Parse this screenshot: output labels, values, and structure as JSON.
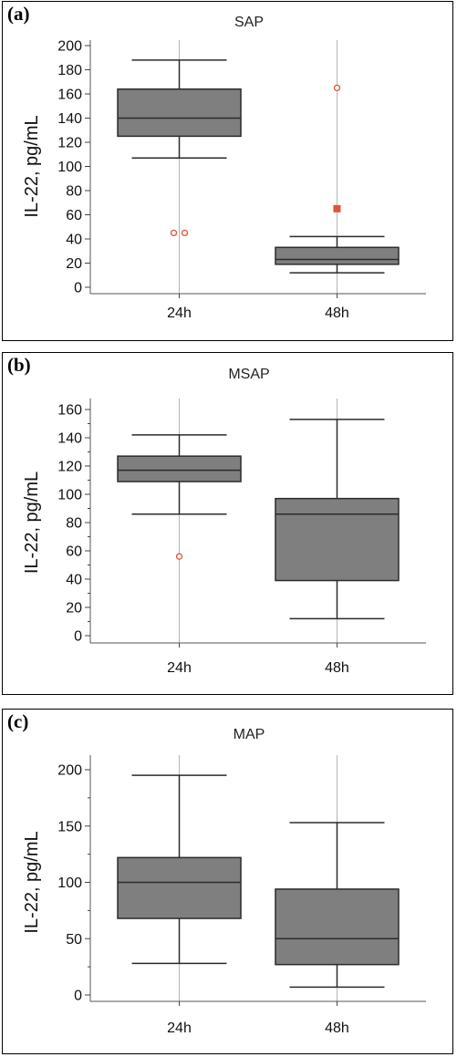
{
  "colors": {
    "box_fill": "#7f7f7f",
    "outline": "#2b2b2b",
    "outlier": "#e0533a",
    "gridline": "#b5b5b5"
  },
  "chart_data": [
    {
      "type": "box",
      "panel_label": "(a)",
      "title": "SAP",
      "ylabel": "IL-22, pg/mL",
      "ylim": [
        0,
        200
      ],
      "yticks": [
        0,
        20,
        40,
        60,
        80,
        100,
        120,
        140,
        160,
        180,
        200
      ],
      "minor_ticks": false,
      "categories": [
        "24h",
        "48h"
      ],
      "boxes": [
        {
          "category": "24h",
          "whisker_low": 107,
          "q1": 125,
          "median": 140,
          "q3": 164,
          "whisker_high": 188,
          "outliers": [
            {
              "value": 45,
              "offset": -0.06,
              "marker": "circle"
            },
            {
              "value": 45,
              "offset": 0.06,
              "marker": "circle"
            }
          ]
        },
        {
          "category": "48h",
          "whisker_low": 12,
          "q1": 19,
          "median": 23,
          "q3": 33,
          "whisker_high": 42,
          "outliers": [
            {
              "value": 165,
              "offset": 0,
              "marker": "circle"
            },
            {
              "value": 65,
              "offset": 0,
              "marker": "square"
            }
          ]
        }
      ]
    },
    {
      "type": "box",
      "panel_label": "(b)",
      "title": "MSAP",
      "ylabel": "IL-22, pg/mL",
      "ylim": [
        0,
        160
      ],
      "yticks": [
        0,
        20,
        40,
        60,
        80,
        100,
        120,
        140,
        160
      ],
      "minor_ticks": true,
      "categories": [
        "24h",
        "48h"
      ],
      "boxes": [
        {
          "category": "24h",
          "whisker_low": 86,
          "q1": 109,
          "median": 117,
          "q3": 127,
          "whisker_high": 142,
          "outliers": [
            {
              "value": 56,
              "offset": 0,
              "marker": "circle"
            }
          ]
        },
        {
          "category": "48h",
          "whisker_low": 12,
          "q1": 39,
          "median": 86,
          "q3": 97,
          "whisker_high": 153,
          "outliers": []
        }
      ]
    },
    {
      "type": "box",
      "panel_label": "(c)",
      "title": "MAP",
      "ylabel": "IL-22, pg/mL",
      "ylim": [
        0,
        200
      ],
      "yticks": [
        0,
        50,
        100,
        150,
        200
      ],
      "minor_ticks": true,
      "categories": [
        "24h",
        "48h"
      ],
      "boxes": [
        {
          "category": "24h",
          "whisker_low": 28,
          "q1": 68,
          "median": 100,
          "q3": 122,
          "whisker_high": 195,
          "outliers": []
        },
        {
          "category": "48h",
          "whisker_low": 7,
          "q1": 27,
          "median": 50,
          "q3": 94,
          "whisker_high": 153,
          "outliers": []
        }
      ]
    }
  ]
}
